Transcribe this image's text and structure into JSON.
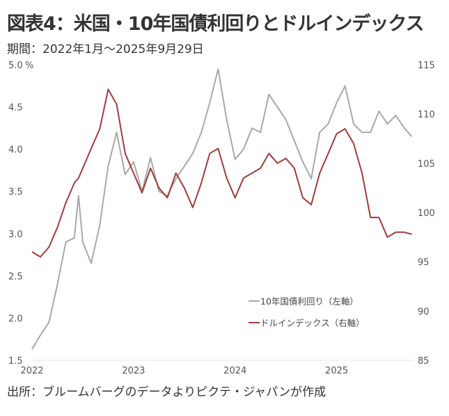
{
  "title": "図表4：米国・10年国債利回りとドルインデックス",
  "subtitle": "期間：2022年1月～2025年9月29日",
  "source": "出所：ブルームバーグのデータよりピクテ・ジャパンが作成",
  "chart_data": {
    "type": "line",
    "title": "米国・10年国債利回りとドルインデックス",
    "x_ticks": [
      2022,
      2023,
      2024,
      2025
    ],
    "x_tick_labels": [
      "2022",
      "2023",
      "2024",
      "2025"
    ],
    "xlim": [
      2022.0,
      2025.75
    ],
    "left_axis": {
      "unit": "%",
      "ylim": [
        1.5,
        5.0
      ],
      "ticks": [
        "1.5",
        "2.0",
        "2.5",
        "3.0",
        "3.5",
        "4.0",
        "4.5",
        "5.0"
      ]
    },
    "right_axis": {
      "ylim": [
        85,
        115
      ],
      "ticks": [
        "85",
        "90",
        "95",
        "100",
        "105",
        "110",
        "115"
      ]
    },
    "legend_position": "bottom-right",
    "x": [
      2022.0,
      2022.083,
      2022.167,
      2022.25,
      2022.333,
      2022.417,
      2022.458,
      2022.5,
      2022.583,
      2022.667,
      2022.75,
      2022.833,
      2022.917,
      2023.0,
      2023.083,
      2023.167,
      2023.25,
      2023.333,
      2023.417,
      2023.5,
      2023.583,
      2023.667,
      2023.75,
      2023.833,
      2023.917,
      2024.0,
      2024.083,
      2024.167,
      2024.25,
      2024.333,
      2024.417,
      2024.5,
      2024.583,
      2024.667,
      2024.75,
      2024.833,
      2024.917,
      2025.0,
      2025.083,
      2025.167,
      2025.25,
      2025.333,
      2025.417,
      2025.5,
      2025.583,
      2025.667,
      2025.74
    ],
    "series": [
      {
        "name": "10年国債利回り（左軸）",
        "axis": "left",
        "color": "#a8a8a8",
        "values": [
          1.63,
          1.8,
          1.95,
          2.4,
          2.9,
          2.95,
          3.45,
          2.9,
          2.65,
          3.1,
          3.8,
          4.2,
          3.7,
          3.85,
          3.5,
          3.9,
          3.5,
          3.45,
          3.65,
          3.8,
          3.95,
          4.2,
          4.55,
          4.95,
          4.35,
          3.88,
          4.0,
          4.25,
          4.2,
          4.65,
          4.5,
          4.35,
          4.1,
          3.85,
          3.65,
          4.2,
          4.3,
          4.55,
          4.75,
          4.3,
          4.2,
          4.2,
          4.45,
          4.3,
          4.4,
          4.25,
          4.15
        ]
      },
      {
        "name": "ドルインデックス（右軸）",
        "axis": "right",
        "color": "#a33a3a",
        "values": [
          96.0,
          95.5,
          96.5,
          98.5,
          101,
          103,
          103.5,
          104.5,
          106.5,
          108.5,
          112.5,
          111,
          106,
          104,
          102,
          104.5,
          102.5,
          101.5,
          104,
          102.5,
          100.5,
          103,
          106,
          106.5,
          103.5,
          101.5,
          103.5,
          104,
          104.5,
          106,
          105,
          105.5,
          104.5,
          101.5,
          100.8,
          104,
          106,
          108,
          108.5,
          107,
          104,
          99.5,
          99.5,
          97.5,
          98,
          98,
          97.8
        ]
      }
    ]
  }
}
